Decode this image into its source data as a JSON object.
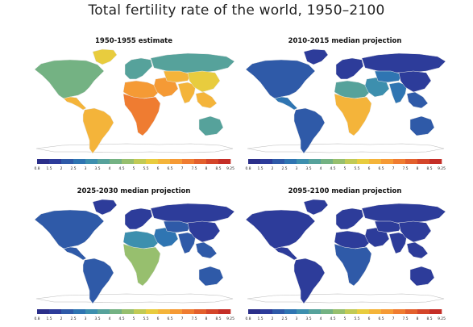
{
  "title": "Total fertility rate of the world, 1950–2100",
  "legend": {
    "ticks": [
      "0.8",
      "1.5",
      "2",
      "2.5",
      "3",
      "3.5",
      "4",
      "4.5",
      "5",
      "5.5",
      "6",
      "6.5",
      "7",
      "7.5",
      "8",
      "8.5",
      "9.25"
    ],
    "colors": [
      "#2b2f8a",
      "#2d3c9a",
      "#2f5aa8",
      "#2f75b2",
      "#3d8fae",
      "#56a29b",
      "#74b283",
      "#97bf6e",
      "#c1ca55",
      "#e8cc3e",
      "#f4b43a",
      "#f59a35",
      "#ef7c31",
      "#e3602d",
      "#d4452a",
      "#c42e27"
    ]
  },
  "panels": [
    {
      "title": "1950-1955 estimate"
    },
    {
      "title": "2010-2015 median projection"
    },
    {
      "title": "2025-2030 median projection"
    },
    {
      "title": "2095-2100 median projection"
    }
  ],
  "regions": [
    "north-america",
    "greenland",
    "central-america",
    "south-america",
    "europe",
    "north-africa",
    "sub-saharan-africa",
    "middle-east",
    "russia",
    "central-asia",
    "south-asia",
    "east-asia",
    "southeast-asia",
    "oceania"
  ],
  "fills": [
    {
      "north-america": "#74b283",
      "greenland": "#e8cc3e",
      "central-america": "#f4b43a",
      "south-america": "#f4b43a",
      "europe": "#56a29b",
      "north-africa": "#f59a35",
      "sub-saharan-africa": "#ef7c31",
      "middle-east": "#f59a35",
      "russia": "#56a29b",
      "central-asia": "#f4b43a",
      "south-asia": "#f4b43a",
      "east-asia": "#e8cc3e",
      "southeast-asia": "#f4b43a",
      "oceania": "#56a29b"
    },
    {
      "north-america": "#2f5aa8",
      "greenland": "#2d3c9a",
      "central-america": "#2f75b2",
      "south-america": "#2f5aa8",
      "europe": "#2d3c9a",
      "north-africa": "#56a29b",
      "sub-saharan-africa": "#f4b43a",
      "middle-east": "#3d8fae",
      "russia": "#2d3c9a",
      "central-asia": "#2f75b2",
      "south-asia": "#2f75b2",
      "east-asia": "#2d3c9a",
      "southeast-asia": "#2f5aa8",
      "oceania": "#2f5aa8"
    },
    {
      "north-america": "#2f5aa8",
      "greenland": "#2d3c9a",
      "central-america": "#2f5aa8",
      "south-america": "#2f5aa8",
      "europe": "#2d3c9a",
      "north-africa": "#3d8fae",
      "sub-saharan-africa": "#97bf6e",
      "middle-east": "#2f75b2",
      "russia": "#2d3c9a",
      "central-asia": "#2f5aa8",
      "south-asia": "#2f5aa8",
      "east-asia": "#2d3c9a",
      "southeast-asia": "#2f5aa8",
      "oceania": "#2f5aa8"
    },
    {
      "north-america": "#2d3c9a",
      "greenland": "#2d3c9a",
      "central-america": "#2d3c9a",
      "south-america": "#2d3c9a",
      "europe": "#2d3c9a",
      "north-africa": "#2d3c9a",
      "sub-saharan-africa": "#2f5aa8",
      "middle-east": "#2d3c9a",
      "russia": "#2d3c9a",
      "central-asia": "#2d3c9a",
      "south-asia": "#2d3c9a",
      "east-asia": "#2d3c9a",
      "southeast-asia": "#2d3c9a",
      "oceania": "#2d3c9a"
    }
  ]
}
